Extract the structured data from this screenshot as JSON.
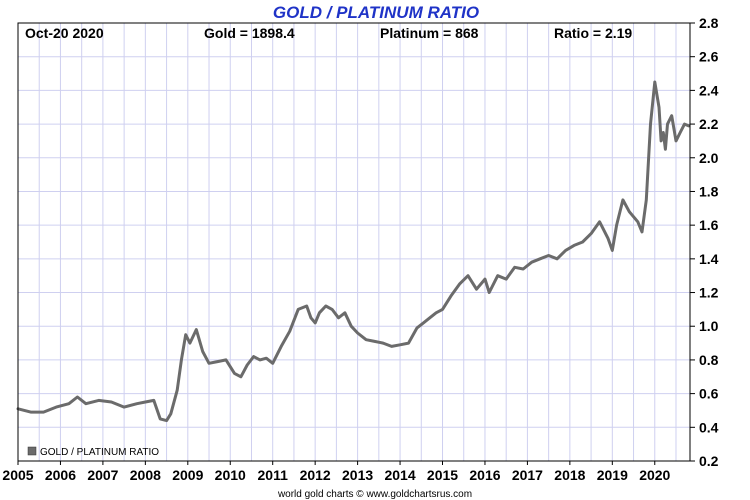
{
  "header": {
    "date": "Oct-20  2020",
    "gold": "Gold = 1898.4",
    "platinum": "Platinum = 868",
    "ratio": "Ratio = 2.19"
  },
  "footer": {
    "credit": "world gold charts © www.goldchartsrus.com"
  },
  "colors": {
    "title": "#1f33c7",
    "line": "#6b6b6b",
    "grid": "#cfd0f0",
    "frame": "#000000"
  },
  "chart_data": {
    "type": "line",
    "title": "GOLD / PLATINUM RATIO",
    "xlabel": "",
    "ylabel": "",
    "xlim": [
      2005,
      2020.83
    ],
    "ylim": [
      0.2,
      2.8
    ],
    "y_ticks": [
      "0.2",
      "0.4",
      "0.6",
      "0.8",
      "1.0",
      "1.2",
      "1.4",
      "1.6",
      "1.8",
      "2.0",
      "2.2",
      "2.4",
      "2.6",
      "2.8"
    ],
    "x_ticks": [
      "2005",
      "2006",
      "2007",
      "2008",
      "2009",
      "2010",
      "2011",
      "2012",
      "2013",
      "2014",
      "2015",
      "2016",
      "2017",
      "2018",
      "2019",
      "2020"
    ],
    "grid": true,
    "legend_position": "bottom-left",
    "series": [
      {
        "name": "GOLD / PLATINUM RATIO",
        "x": [
          2005.0,
          2005.3,
          2005.6,
          2005.9,
          2006.2,
          2006.4,
          2006.6,
          2006.9,
          2007.2,
          2007.5,
          2007.8,
          2008.0,
          2008.2,
          2008.35,
          2008.5,
          2008.6,
          2008.75,
          2008.85,
          2008.95,
          2009.05,
          2009.2,
          2009.35,
          2009.5,
          2009.7,
          2009.9,
          2010.1,
          2010.25,
          2010.4,
          2010.55,
          2010.7,
          2010.85,
          2011.0,
          2011.2,
          2011.4,
          2011.6,
          2011.8,
          2011.9,
          2012.0,
          2012.1,
          2012.25,
          2012.4,
          2012.55,
          2012.7,
          2012.85,
          2013.0,
          2013.2,
          2013.4,
          2013.6,
          2013.8,
          2014.0,
          2014.2,
          2014.4,
          2014.55,
          2014.7,
          2014.85,
          2015.0,
          2015.2,
          2015.4,
          2015.6,
          2015.8,
          2016.0,
          2016.1,
          2016.3,
          2016.5,
          2016.7,
          2016.9,
          2017.1,
          2017.3,
          2017.5,
          2017.7,
          2017.9,
          2018.1,
          2018.3,
          2018.5,
          2018.7,
          2018.9,
          2019.0,
          2019.1,
          2019.25,
          2019.4,
          2019.5,
          2019.6,
          2019.7,
          2019.8,
          2019.9,
          2020.0,
          2020.1,
          2020.15,
          2020.2,
          2020.25,
          2020.3,
          2020.4,
          2020.5,
          2020.6,
          2020.7,
          2020.8
        ],
        "values": [
          0.51,
          0.49,
          0.49,
          0.52,
          0.54,
          0.58,
          0.54,
          0.56,
          0.55,
          0.52,
          0.54,
          0.55,
          0.56,
          0.45,
          0.44,
          0.48,
          0.62,
          0.8,
          0.95,
          0.9,
          0.98,
          0.85,
          0.78,
          0.79,
          0.8,
          0.72,
          0.7,
          0.77,
          0.82,
          0.8,
          0.81,
          0.78,
          0.88,
          0.97,
          1.1,
          1.12,
          1.05,
          1.02,
          1.08,
          1.12,
          1.1,
          1.05,
          1.08,
          1.0,
          0.96,
          0.92,
          0.91,
          0.9,
          0.88,
          0.89,
          0.9,
          0.99,
          1.02,
          1.05,
          1.08,
          1.1,
          1.18,
          1.25,
          1.3,
          1.22,
          1.28,
          1.2,
          1.3,
          1.28,
          1.35,
          1.34,
          1.38,
          1.4,
          1.42,
          1.4,
          1.45,
          1.48,
          1.5,
          1.55,
          1.62,
          1.52,
          1.45,
          1.6,
          1.75,
          1.68,
          1.65,
          1.62,
          1.56,
          1.75,
          2.2,
          2.45,
          2.3,
          2.1,
          2.15,
          2.05,
          2.2,
          2.25,
          2.1,
          2.15,
          2.2,
          2.19
        ]
      }
    ]
  }
}
